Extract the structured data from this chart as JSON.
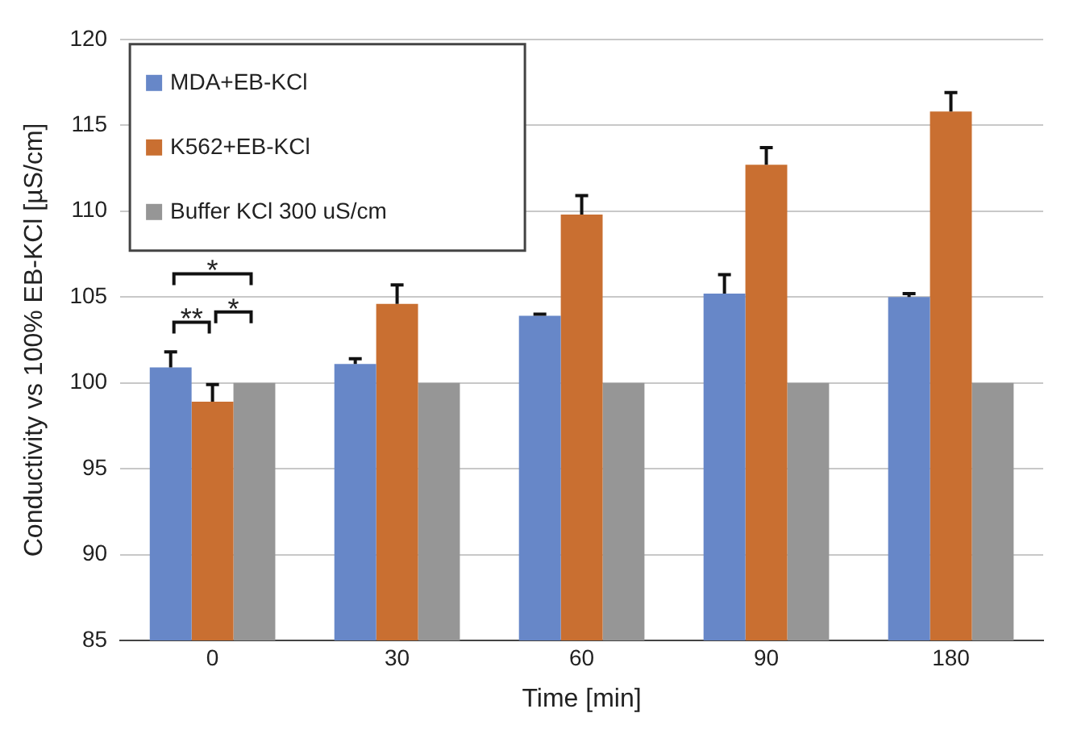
{
  "chart_data": {
    "type": "bar",
    "xlabel": "Time [min]",
    "ylabel": "Conductivity vs 100% EB-KCl [µS/cm]",
    "categories": [
      "0",
      "30",
      "60",
      "90",
      "180"
    ],
    "series": [
      {
        "name": "MDA+EB-KCl",
        "color": "#6787c8",
        "values": [
          100.9,
          101.1,
          103.9,
          105.2,
          105.0
        ],
        "errors": [
          [
            100.9,
            101.8
          ],
          [
            101.1,
            101.4
          ],
          [
            103.9,
            104.0
          ],
          [
            105.2,
            106.3
          ],
          [
            105.0,
            105.2
          ]
        ]
      },
      {
        "name": "K562+EB-KCl",
        "color": "#c96f31",
        "values": [
          98.9,
          104.6,
          109.8,
          112.7,
          115.8
        ],
        "errors": [
          [
            98.9,
            99.9
          ],
          [
            104.6,
            105.7
          ],
          [
            109.8,
            110.9
          ],
          [
            112.7,
            113.7
          ],
          [
            115.8,
            116.9
          ]
        ]
      },
      {
        "name": "Buffer KCl 300 uS/cm",
        "color": "#969696",
        "values": [
          100,
          100,
          100,
          100,
          100
        ]
      }
    ],
    "ylim": [
      85,
      120
    ],
    "yticks": [
      85,
      90,
      95,
      100,
      105,
      110,
      115,
      120
    ],
    "grid": "y",
    "legend": "top left",
    "annotations": [
      "*",
      "**",
      "*"
    ]
  }
}
